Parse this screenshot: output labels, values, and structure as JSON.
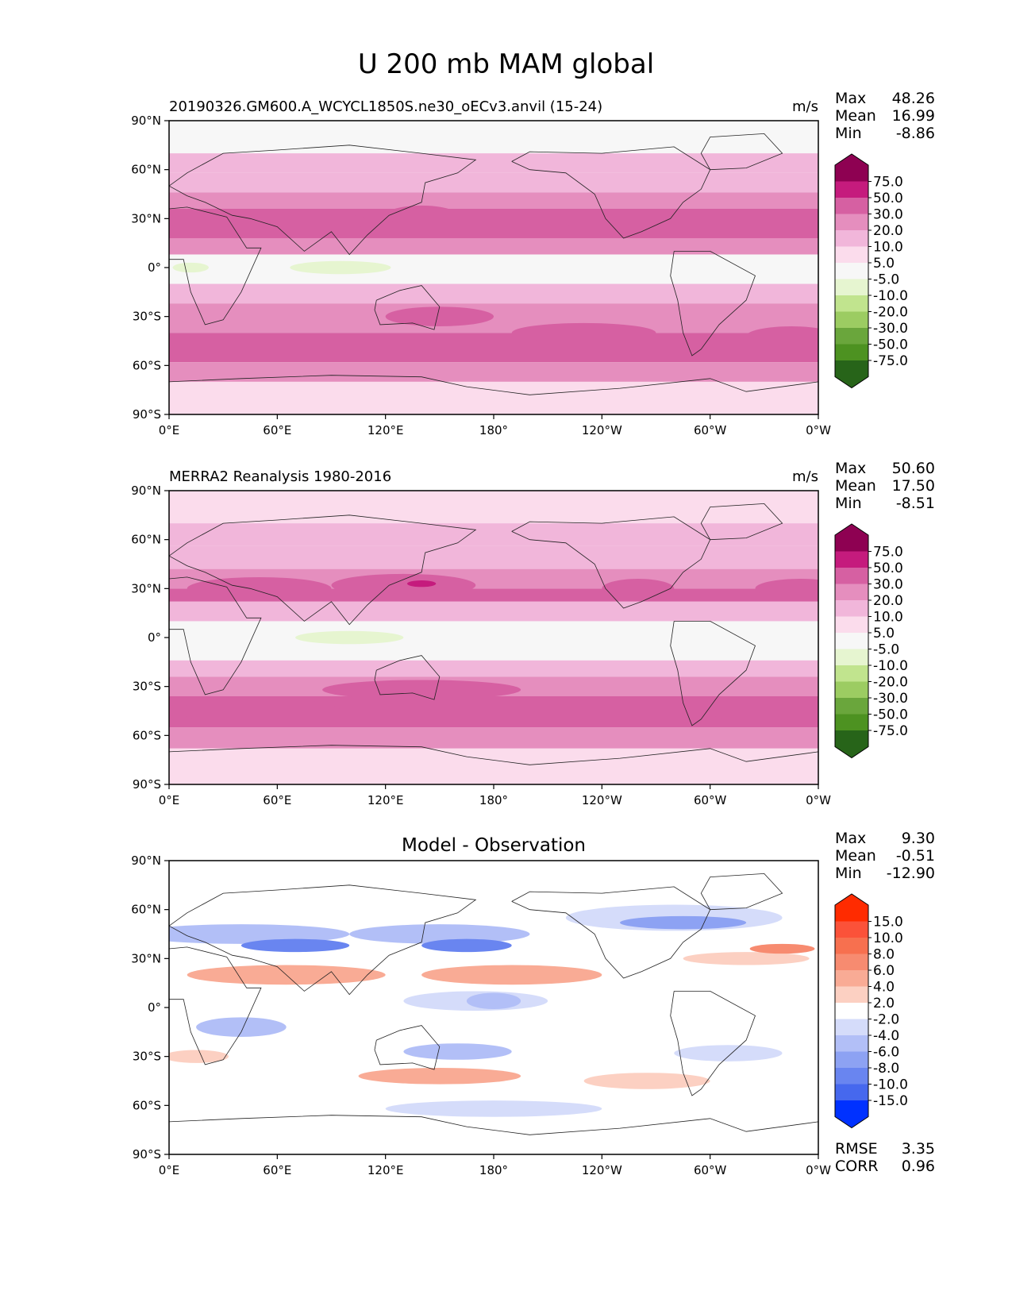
{
  "figure": {
    "title": "U 200 mb MAM global"
  },
  "chart_data": [
    {
      "type": "heatmap",
      "panel": "test",
      "title": "",
      "left_label": "20190326.GM600.A_WCYCL1850S.ne30_oECv3.anvil (15-24)",
      "units": "m/s",
      "stats": [
        {
          "label": "Max",
          "value": "48.26"
        },
        {
          "label": "Mean",
          "value": "16.99"
        },
        {
          "label": "Min",
          "value": "-8.86"
        }
      ],
      "x_ticks": [
        "0°E",
        "60°E",
        "120°E",
        "180°",
        "120°W",
        "60°W",
        "0°W"
      ],
      "y_ticks": [
        "90°N",
        "60°N",
        "30°N",
        "0°",
        "30°S",
        "60°S",
        "90°S"
      ],
      "xlim": [
        0,
        360
      ],
      "ylim": [
        -90,
        90
      ],
      "levels": [
        "75.0",
        "50.0",
        "30.0",
        "20.0",
        "10.0",
        "5.0",
        "-5.0",
        "-10.0",
        "-20.0",
        "-30.0",
        "-50.0",
        "-75.0"
      ],
      "colors": [
        "#8e0152",
        "#c51b7d",
        "#d660a2",
        "#e58ebe",
        "#f1b6da",
        "#fbdcec",
        "#f7f7f7",
        "#e6f5d0",
        "#c1e48e",
        "#9ccc62",
        "#6aa63c",
        "#4d9221",
        "#276419"
      ],
      "zones": [
        {
          "lat0": 90,
          "lat1": 70,
          "v": 5
        },
        {
          "lat0": 70,
          "lat1": 58,
          "v": 12
        },
        {
          "lat0": 58,
          "lat1": 46,
          "v": 15
        },
        {
          "lat0": 46,
          "lat1": 36,
          "v": 22
        },
        {
          "lat0": 36,
          "lat1": 18,
          "v": 33
        },
        {
          "lat0": 18,
          "lat1": 8,
          "v": 22
        },
        {
          "lat0": 8,
          "lat1": -10,
          "v": 3
        },
        {
          "lat0": -10,
          "lat1": -22,
          "v": 15
        },
        {
          "lat0": -22,
          "lat1": -40,
          "v": 22
        },
        {
          "lat0": -40,
          "lat1": -58,
          "v": 33
        },
        {
          "lat0": -58,
          "lat1": -70,
          "v": 22
        },
        {
          "lat0": -70,
          "lat1": -90,
          "v": 7
        }
      ],
      "blobs": [
        {
          "lon": 55,
          "lat": 28,
          "dlon": 55,
          "dlat": 8,
          "v": 33
        },
        {
          "lon": 140,
          "lat": 32,
          "dlon": 20,
          "dlat": 6,
          "v": 33
        },
        {
          "lon": 250,
          "lat": 28,
          "dlon": 30,
          "dlat": 6,
          "v": 33
        },
        {
          "lon": 95,
          "lat": 0,
          "dlon": 28,
          "dlat": 4,
          "v": -7
        },
        {
          "lon": 12,
          "lat": 0,
          "dlon": 10,
          "dlat": 3,
          "v": -7
        },
        {
          "lon": 150,
          "lat": -30,
          "dlon": 30,
          "dlat": 6,
          "v": 33
        },
        {
          "lon": 230,
          "lat": -40,
          "dlon": 40,
          "dlat": 6,
          "v": 33
        },
        {
          "lon": 345,
          "lat": -42,
          "dlon": 25,
          "dlat": 6,
          "v": 33
        }
      ]
    },
    {
      "type": "heatmap",
      "panel": "reference",
      "title": "",
      "left_label": "MERRA2 Reanalysis 1980-2016",
      "units": "m/s",
      "stats": [
        {
          "label": "Max",
          "value": "50.60"
        },
        {
          "label": "Mean",
          "value": "17.50"
        },
        {
          "label": "Min",
          "value": "-8.51"
        }
      ],
      "x_ticks": [
        "0°E",
        "60°E",
        "120°E",
        "180°",
        "120°W",
        "60°W",
        "0°W"
      ],
      "y_ticks": [
        "90°N",
        "60°N",
        "30°N",
        "0°",
        "30°S",
        "60°S",
        "90°S"
      ],
      "xlim": [
        0,
        360
      ],
      "ylim": [
        -90,
        90
      ],
      "levels": [
        "75.0",
        "50.0",
        "30.0",
        "20.0",
        "10.0",
        "5.0",
        "-5.0",
        "-10.0",
        "-20.0",
        "-30.0",
        "-50.0",
        "-75.0"
      ],
      "colors": [
        "#8e0152",
        "#c51b7d",
        "#d660a2",
        "#e58ebe",
        "#f1b6da",
        "#fbdcec",
        "#f7f7f7",
        "#e6f5d0",
        "#c1e48e",
        "#9ccc62",
        "#6aa63c",
        "#4d9221",
        "#276419"
      ],
      "zones": [
        {
          "lat0": 90,
          "lat1": 70,
          "v": 7
        },
        {
          "lat0": 70,
          "lat1": 56,
          "v": 15
        },
        {
          "lat0": 56,
          "lat1": 42,
          "v": 15
        },
        {
          "lat0": 42,
          "lat1": 30,
          "v": 22
        },
        {
          "lat0": 30,
          "lat1": 22,
          "v": 33
        },
        {
          "lat0": 22,
          "lat1": 10,
          "v": 15
        },
        {
          "lat0": 10,
          "lat1": -14,
          "v": 3
        },
        {
          "lat0": -14,
          "lat1": -24,
          "v": 15
        },
        {
          "lat0": -24,
          "lat1": -36,
          "v": 22
        },
        {
          "lat0": -36,
          "lat1": -55,
          "v": 33
        },
        {
          "lat0": -55,
          "lat1": -68,
          "v": 22
        },
        {
          "lat0": -68,
          "lat1": -90,
          "v": 7
        }
      ],
      "blobs": [
        {
          "lon": 50,
          "lat": 30,
          "dlon": 40,
          "dlat": 7,
          "v": 33
        },
        {
          "lon": 130,
          "lat": 32,
          "dlon": 40,
          "dlat": 7,
          "v": 33
        },
        {
          "lon": 140,
          "lat": 33,
          "dlon": 8,
          "dlat": 2,
          "v": 55
        },
        {
          "lon": 260,
          "lat": 30,
          "dlon": 20,
          "dlat": 6,
          "v": 33
        },
        {
          "lon": 350,
          "lat": 30,
          "dlon": 25,
          "dlat": 6,
          "v": 33
        },
        {
          "lon": 100,
          "lat": 0,
          "dlon": 30,
          "dlat": 4,
          "v": -7
        },
        {
          "lon": 140,
          "lat": -32,
          "dlon": 55,
          "dlat": 6,
          "v": 33
        },
        {
          "lon": 50,
          "lat": -45,
          "dlon": 45,
          "dlat": 8,
          "v": 33
        },
        {
          "lon": 330,
          "lat": -45,
          "dlon": 30,
          "dlat": 8,
          "v": 33
        }
      ]
    },
    {
      "type": "heatmap",
      "panel": "difference",
      "title": "Model - Observation",
      "left_label": "",
      "units": "",
      "stats": [
        {
          "label": "Max",
          "value": "9.30"
        },
        {
          "label": "Mean",
          "value": "-0.51"
        },
        {
          "label": "Min",
          "value": "-12.90"
        }
      ],
      "metrics": [
        {
          "label": "RMSE",
          "value": "3.35"
        },
        {
          "label": "CORR",
          "value": "0.96"
        }
      ],
      "x_ticks": [
        "0°E",
        "60°E",
        "120°E",
        "180°",
        "120°W",
        "60°W",
        "0°W"
      ],
      "y_ticks": [
        "90°N",
        "60°N",
        "30°N",
        "0°",
        "30°S",
        "60°S",
        "90°S"
      ],
      "xlim": [
        0,
        360
      ],
      "ylim": [
        -90,
        90
      ],
      "levels": [
        "15.0",
        "10.0",
        "8.0",
        "6.0",
        "4.0",
        "2.0",
        "-2.0",
        "-4.0",
        "-6.0",
        "-8.0",
        "-10.0",
        "-15.0"
      ],
      "colors": [
        "#ff2b00",
        "#fb5239",
        "#f7704f",
        "#f78b70",
        "#f9ab95",
        "#fcd0c2",
        "#ffffff",
        "#d5dcfa",
        "#b2bff7",
        "#8da2f3",
        "#6985f0",
        "#4668ee",
        "#0031ff"
      ],
      "zones": [
        {
          "lat0": 90,
          "lat1": -90,
          "v": 0
        }
      ],
      "blobs": [
        {
          "lon": 40,
          "lat": 45,
          "dlon": 60,
          "dlat": 6,
          "v": -5
        },
        {
          "lon": 150,
          "lat": 45,
          "dlon": 50,
          "dlat": 6,
          "v": -5
        },
        {
          "lon": 280,
          "lat": 55,
          "dlon": 60,
          "dlat": 8,
          "v": -3
        },
        {
          "lon": 70,
          "lat": 38,
          "dlon": 30,
          "dlat": 4,
          "v": -9
        },
        {
          "lon": 165,
          "lat": 38,
          "dlon": 25,
          "dlat": 4,
          "v": -9
        },
        {
          "lon": 285,
          "lat": 52,
          "dlon": 35,
          "dlat": 4,
          "v": -7
        },
        {
          "lon": 65,
          "lat": 20,
          "dlon": 55,
          "dlat": 6,
          "v": 5
        },
        {
          "lon": 190,
          "lat": 20,
          "dlon": 50,
          "dlat": 6,
          "v": 5
        },
        {
          "lon": 320,
          "lat": 30,
          "dlon": 35,
          "dlat": 4,
          "v": 3
        },
        {
          "lon": 340,
          "lat": 36,
          "dlon": 18,
          "dlat": 3,
          "v": 7
        },
        {
          "lon": 40,
          "lat": -12,
          "dlon": 25,
          "dlat": 6,
          "v": -5
        },
        {
          "lon": 170,
          "lat": 4,
          "dlon": 40,
          "dlat": 6,
          "v": -3
        },
        {
          "lon": 180,
          "lat": 4,
          "dlon": 15,
          "dlat": 5,
          "v": -5
        },
        {
          "lon": 160,
          "lat": -27,
          "dlon": 30,
          "dlat": 5,
          "v": -5
        },
        {
          "lon": 310,
          "lat": -28,
          "dlon": 30,
          "dlat": 5,
          "v": -3
        },
        {
          "lon": 150,
          "lat": -42,
          "dlon": 45,
          "dlat": 5,
          "v": 5
        },
        {
          "lon": 15,
          "lat": -30,
          "dlon": 18,
          "dlat": 4,
          "v": 3
        },
        {
          "lon": 265,
          "lat": -45,
          "dlon": 35,
          "dlat": 5,
          "v": 3
        },
        {
          "lon": 180,
          "lat": -62,
          "dlon": 60,
          "dlat": 5,
          "v": -3
        }
      ]
    }
  ]
}
